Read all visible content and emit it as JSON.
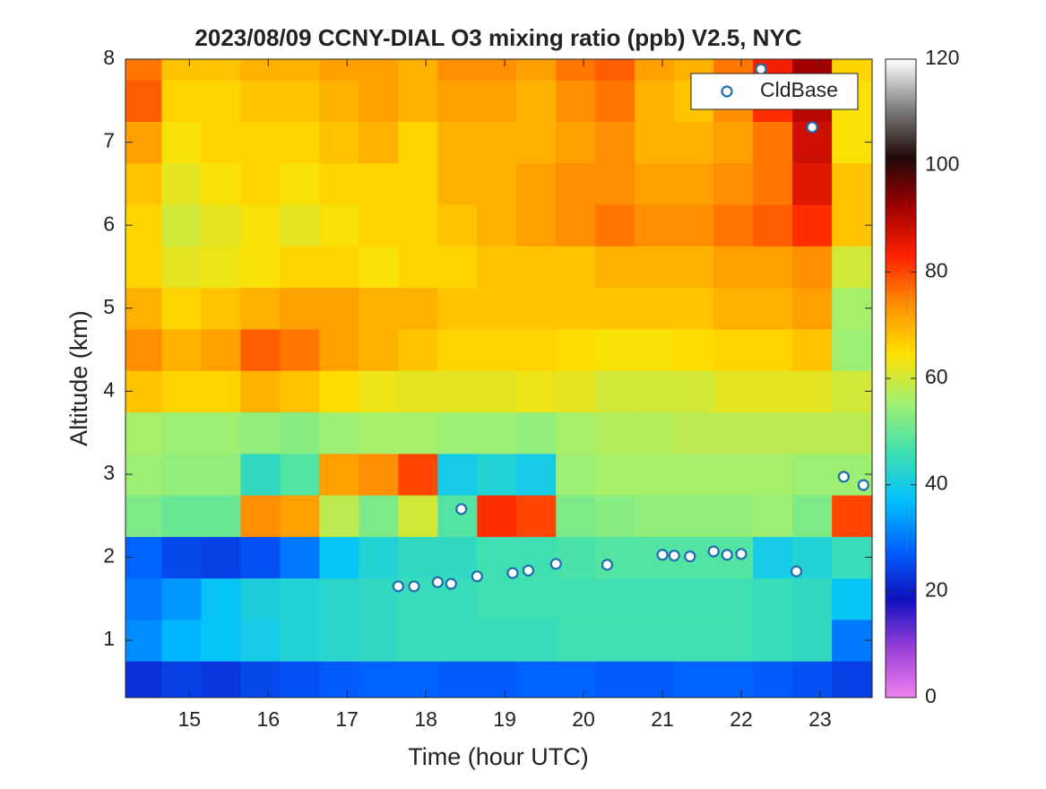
{
  "chart_data": {
    "type": "heatmap",
    "title": "2023/08/09 CCNY-DIAL O3 mixing ratio (ppb) V2.5, NYC",
    "xlabel": "Time (hour UTC)",
    "ylabel": "Altitude (km)",
    "x": [
      14.4,
      14.9,
      15.4,
      15.9,
      16.4,
      16.9,
      17.4,
      17.9,
      18.4,
      18.9,
      19.4,
      19.9,
      20.4,
      20.9,
      21.4,
      21.9,
      22.4,
      22.9,
      23.4
    ],
    "y": [
      0.5,
      1.0,
      1.5,
      2.0,
      2.5,
      3.0,
      3.5,
      4.0,
      4.5,
      5.0,
      5.5,
      6.0,
      6.5,
      7.0,
      7.5,
      8.0
    ],
    "z": [
      [
        22,
        24,
        23,
        25,
        26,
        27,
        28,
        28,
        27,
        27,
        28,
        28,
        27,
        27,
        28,
        28,
        27,
        26,
        24
      ],
      [
        32,
        36,
        38,
        40,
        42,
        43,
        44,
        45,
        45,
        45,
        45,
        46,
        46,
        46,
        46,
        46,
        45,
        44,
        30
      ],
      [
        30,
        33,
        38,
        41,
        42,
        43,
        44,
        45,
        45,
        46,
        46,
        46,
        46,
        46,
        46,
        46,
        45,
        44,
        38
      ],
      [
        28,
        25,
        24,
        26,
        30,
        38,
        42,
        44,
        44,
        46,
        46,
        47,
        48,
        48,
        48,
        48,
        40,
        42,
        45
      ],
      [
        52,
        50,
        50,
        74,
        72,
        58,
        52,
        60,
        48,
        82,
        80,
        52,
        53,
        54,
        54,
        54,
        55,
        52,
        80
      ],
      [
        55,
        54,
        54,
        44,
        48,
        72,
        74,
        80,
        40,
        42,
        40,
        55,
        56,
        56,
        56,
        56,
        56,
        55,
        55
      ],
      [
        56,
        55,
        55,
        54,
        53,
        55,
        56,
        56,
        55,
        55,
        54,
        56,
        57,
        57,
        58,
        58,
        58,
        58,
        58
      ],
      [
        68,
        66,
        66,
        70,
        68,
        65,
        63,
        62,
        62,
        62,
        63,
        62,
        60,
        60,
        60,
        62,
        62,
        62,
        60
      ],
      [
        74,
        70,
        72,
        78,
        76,
        72,
        70,
        68,
        66,
        66,
        66,
        65,
        64,
        64,
        65,
        66,
        66,
        68,
        55
      ],
      [
        70,
        66,
        68,
        70,
        72,
        72,
        70,
        70,
        68,
        68,
        68,
        68,
        68,
        68,
        68,
        70,
        70,
        72,
        56
      ],
      [
        66,
        62,
        63,
        64,
        66,
        66,
        64,
        66,
        66,
        68,
        68,
        68,
        70,
        70,
        70,
        72,
        72,
        74,
        60
      ],
      [
        66,
        60,
        62,
        64,
        62,
        64,
        66,
        66,
        68,
        70,
        72,
        74,
        76,
        74,
        74,
        76,
        78,
        82,
        68
      ],
      [
        68,
        62,
        64,
        66,
        64,
        66,
        66,
        66,
        70,
        70,
        72,
        74,
        74,
        72,
        72,
        74,
        76,
        86,
        68
      ],
      [
        72,
        64,
        66,
        66,
        66,
        68,
        70,
        66,
        70,
        70,
        70,
        72,
        74,
        70,
        70,
        72,
        76,
        88,
        64
      ],
      [
        78,
        66,
        66,
        68,
        68,
        70,
        72,
        70,
        72,
        72,
        70,
        74,
        76,
        70,
        68,
        74,
        82,
        90,
        64
      ],
      [
        76,
        68,
        68,
        70,
        70,
        72,
        72,
        70,
        74,
        74,
        72,
        76,
        78,
        72,
        70,
        76,
        84,
        92,
        66
      ]
    ],
    "xlim": [
      14.19,
      23.66
    ],
    "ylim": [
      0.31,
      8
    ],
    "xticks": [
      15,
      16,
      17,
      18,
      19,
      20,
      21,
      22,
      23
    ],
    "yticks": [
      1,
      2,
      3,
      4,
      5,
      6,
      7,
      8
    ],
    "clim": [
      0,
      120
    ],
    "cticks": [
      0,
      20,
      40,
      60,
      80,
      100,
      120
    ],
    "colormap": [
      "#f080f0",
      "#9a3fd8",
      "#1010c0",
      "#0060ff",
      "#00c0ff",
      "#40e0b0",
      "#a0f070",
      "#ffe000",
      "#ff9000",
      "#ff2000",
      "#a00000",
      "#200808",
      "#808080",
      "#ffffff"
    ],
    "legend": "upper right",
    "series": [
      {
        "name": "CldBase",
        "type": "scatter",
        "color": "#1f6fb0",
        "x": [
          17.65,
          17.85,
          18.15,
          18.32,
          18.45,
          18.65,
          19.1,
          19.3,
          19.65,
          20.3,
          21.0,
          21.15,
          21.35,
          21.65,
          21.82,
          22.0,
          22.25,
          22.7,
          22.9,
          23.3,
          23.55
        ],
        "y": [
          1.65,
          1.65,
          1.7,
          1.68,
          2.58,
          1.77,
          1.81,
          1.84,
          1.92,
          1.91,
          2.03,
          2.02,
          2.01,
          2.07,
          2.03,
          2.04,
          7.88,
          1.83,
          7.18,
          2.97,
          2.87
        ]
      }
    ]
  }
}
